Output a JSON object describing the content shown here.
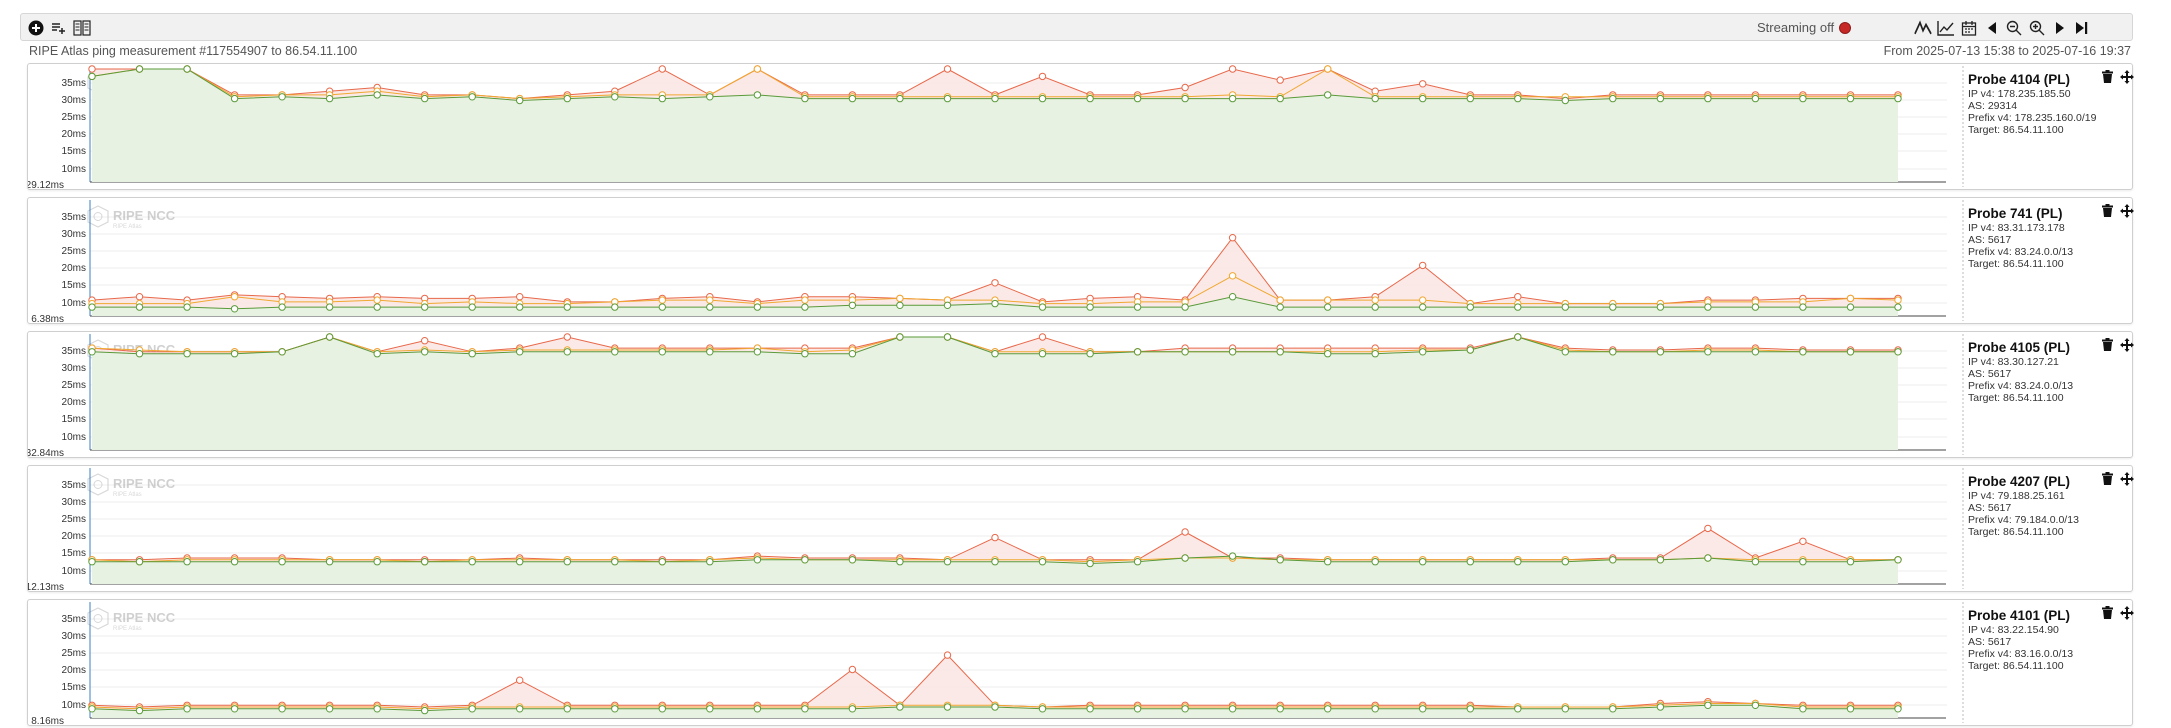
{
  "toolbar": {
    "left_icons": [
      "add-circle-icon",
      "add-list-icon",
      "grid-layout-icon"
    ],
    "streaming_label": "Streaming off",
    "right_icons": [
      "chart-type-icon",
      "line-chart-icon",
      "calendar-icon",
      "arrow-left-icon",
      "zoom-out-icon",
      "zoom-in-icon",
      "arrow-right-icon",
      "skip-end-icon"
    ]
  },
  "header": {
    "measurement": "RIPE Atlas ping measurement #117554907 to 86.54.11.100",
    "date_range": "From 2025-07-13 15:38 to 2025-07-16 19:37"
  },
  "colors": {
    "max": "#e8684a",
    "avg": "#f0a830",
    "min": "#5a9a3a",
    "max_fill": "#fbe7e4",
    "min_fill": "#e6f3e1",
    "accent": "#3b82c4"
  },
  "watermark": {
    "title": "RIPE NCC",
    "sub": "RIPE Atlas"
  },
  "probes": [
    {
      "title": "Probe 4104 (PL)",
      "ip": "IP v4: 178.235.185.50",
      "as": "AS: 29314",
      "prefix": "Prefix v4: 178.235.160.0/19",
      "target": "Target: 86.54.11.100",
      "y_labels": [
        "35ms",
        "30ms",
        "25ms",
        "20ms",
        "15ms",
        "10ms"
      ],
      "y_min_label": "29.12ms",
      "chart_data": {
        "type": "line",
        "y_floor": 29.12,
        "ylim": [
          8,
          38
        ],
        "series": [
          {
            "key": "max",
            "values": [
              38,
              38,
              38,
              31,
              31,
              32,
              33,
              31,
              31,
              30,
              31,
              32,
              38,
              31,
              38,
              31,
              31,
              31,
              38,
              31,
              36,
              31,
              31,
              33,
              38,
              35,
              38,
              32,
              34,
              31,
              31,
              30,
              31,
              31,
              31,
              31,
              31,
              31,
              31
            ]
          },
          {
            "key": "avg",
            "values": [
              36,
              38,
              38,
              30.5,
              31,
              31,
              32,
              30.5,
              31,
              30,
              30.5,
              31,
              31,
              31,
              38,
              30.5,
              30.5,
              30.5,
              30.5,
              30.5,
              30.5,
              30.5,
              30.5,
              30.5,
              31,
              30.5,
              38,
              30.5,
              30.5,
              30.5,
              30.5,
              30.5,
              30.5,
              30.5,
              30.5,
              30.5,
              30.5,
              30.5,
              30.5
            ]
          },
          {
            "key": "min",
            "values": [
              36,
              38,
              38,
              30,
              30.5,
              30,
              31,
              30,
              30.5,
              29.5,
              30,
              30.5,
              30,
              30.5,
              31,
              30,
              30,
              30,
              30,
              30,
              30,
              30,
              30,
              30,
              30,
              30,
              31,
              30,
              30,
              30,
              30,
              29.5,
              30,
              30,
              30,
              30,
              30,
              30,
              30
            ]
          }
        ]
      }
    },
    {
      "title": "Probe 741 (PL)",
      "ip": "IP v4: 83.31.173.178",
      "as": "AS: 5617",
      "prefix": "Prefix v4: 83.24.0.0/13",
      "target": "Target: 86.54.11.100",
      "y_labels": [
        "35ms",
        "30ms",
        "25ms",
        "20ms",
        "15ms",
        "10ms"
      ],
      "y_min_label": "6.38ms",
      "chart_data": {
        "type": "line",
        "y_floor": 6.38,
        "ylim": [
          6,
          38
        ],
        "series": [
          {
            "key": "max",
            "values": [
              10,
              11,
              10,
              11.5,
              11,
              10.5,
              11,
              10.5,
              10.5,
              11,
              9.5,
              9.5,
              10.5,
              11,
              9.5,
              11,
              11,
              10.5,
              10,
              15,
              9.5,
              10.5,
              11,
              10,
              28,
              10,
              10,
              11,
              20,
              9,
              11,
              9,
              9,
              9,
              10,
              10,
              10.5,
              10.5,
              10.5
            ]
          },
          {
            "key": "avg",
            "values": [
              9,
              9,
              9,
              11,
              9.5,
              9.5,
              10,
              9,
              9.5,
              9,
              9,
              9.5,
              10,
              10,
              9,
              10,
              10,
              10.5,
              10,
              10,
              9,
              9,
              9.5,
              9.5,
              17,
              10,
              10,
              10,
              10,
              9,
              9,
              9,
              9,
              9,
              9.5,
              9.5,
              9.5,
              10.5,
              10
            ]
          },
          {
            "key": "min",
            "values": [
              8,
              8,
              8,
              7.5,
              8,
              8,
              8,
              8,
              8,
              8,
              8,
              8,
              8,
              8,
              8,
              8,
              8.5,
              8.5,
              8.5,
              9,
              8,
              8,
              8,
              8,
              11,
              8,
              8,
              8,
              8,
              8,
              8,
              8,
              8,
              8,
              8,
              8,
              8,
              8,
              8
            ]
          }
        ]
      }
    },
    {
      "title": "Probe 4105 (PL)",
      "ip": "IP v4: 83.30.127.21",
      "as": "AS: 5617",
      "prefix": "Prefix v4: 83.24.0.0/13",
      "target": "Target: 86.54.11.100",
      "y_labels": [
        "35ms",
        "30ms",
        "25ms",
        "20ms",
        "15ms",
        "10ms"
      ],
      "y_min_label": "32.84ms",
      "chart_data": {
        "type": "line",
        "y_floor": 32.84,
        "ylim": [
          8,
          38
        ],
        "series": [
          {
            "key": "max",
            "values": [
              35,
              34,
              34,
              34,
              34,
              38,
              34,
              37,
              34,
              35,
              38,
              35,
              35,
              35,
              35,
              35,
              35,
              38,
              38,
              34,
              38,
              34,
              34,
              35,
              35,
              35,
              35,
              35,
              35,
              35,
              38,
              35,
              34.5,
              34.5,
              35,
              35,
              34.5,
              34.5,
              34.5
            ]
          },
          {
            "key": "avg",
            "values": [
              35,
              34.5,
              34,
              34,
              34,
              38,
              34,
              34.5,
              34,
              34.5,
              34.5,
              34.5,
              34.5,
              34.5,
              35,
              34,
              34.5,
              38,
              38,
              34,
              34,
              34,
              34,
              34,
              34,
              34,
              34,
              34,
              34.5,
              34.5,
              38,
              34.5,
              34,
              34,
              34.5,
              34.5,
              34,
              34,
              34
            ]
          },
          {
            "key": "min",
            "values": [
              34,
              33.5,
              33.5,
              33.5,
              34,
              38,
              33.5,
              34,
              33.5,
              34,
              34,
              34,
              34,
              34,
              34,
              33.5,
              33.5,
              38,
              38,
              33.5,
              33.5,
              33.5,
              34,
              34,
              34,
              34,
              33.5,
              33.5,
              34,
              34.5,
              38,
              34,
              34,
              34,
              34,
              34,
              34,
              34,
              34
            ]
          }
        ]
      }
    },
    {
      "title": "Probe 4207 (PL)",
      "ip": "IP v4: 79.188.25.161",
      "as": "AS: 5617",
      "prefix": "Prefix v4: 79.184.0.0/13",
      "target": "Target: 86.54.11.100",
      "y_labels": [
        "35ms",
        "30ms",
        "25ms",
        "20ms",
        "15ms",
        "10ms"
      ],
      "y_min_label": "12.13ms",
      "chart_data": {
        "type": "line",
        "y_floor": 12.13,
        "ylim": [
          8,
          38
        ],
        "series": [
          {
            "key": "max",
            "values": [
              14,
              14,
              14.5,
              14.5,
              14.5,
              14,
              14,
              14,
              14,
              14.5,
              14,
              14,
              14,
              14,
              15,
              14.5,
              14.5,
              14.5,
              14,
              20,
              14,
              14,
              14,
              21.5,
              14.5,
              14.5,
              14,
              14,
              14,
              14,
              14,
              14,
              14.5,
              14.5,
              22.5,
              14.5,
              19,
              14,
              14
            ]
          },
          {
            "key": "avg",
            "values": [
              14,
              13.5,
              14,
              14,
              14,
              14,
              14,
              13.5,
              14,
              14,
              14,
              14,
              13.5,
              14,
              14.5,
              14,
              14,
              14,
              14,
              14,
              14,
              13.5,
              14,
              14.5,
              14.5,
              14,
              14,
              14,
              14,
              14,
              14,
              14,
              14,
              14,
              14.5,
              14,
              14,
              14,
              14
            ]
          },
          {
            "key": "min",
            "values": [
              13.5,
              13.5,
              13.5,
              13.5,
              13.5,
              13.5,
              13.5,
              13.5,
              13.5,
              13.5,
              13.5,
              13.5,
              13.5,
              13.5,
              14,
              14,
              14,
              13.5,
              13.5,
              13.5,
              13.5,
              13,
              13.5,
              14.5,
              15,
              14,
              13.5,
              13.5,
              13.5,
              13.5,
              13.5,
              13.5,
              14,
              14,
              14.5,
              13.5,
              13.5,
              13.5,
              14
            ]
          }
        ]
      }
    },
    {
      "title": "Probe 4101 (PL)",
      "ip": "IP v4: 83.22.154.90",
      "as": "AS: 5617",
      "prefix": "Prefix v4: 83.16.0.0/13",
      "target": "Target: 86.54.11.100",
      "y_labels": [
        "35ms",
        "30ms",
        "25ms",
        "20ms",
        "15ms",
        "10ms"
      ],
      "y_min_label": "8.16ms",
      "chart_data": {
        "type": "line",
        "y_floor": 8.16,
        "ylim": [
          7,
          38
        ],
        "series": [
          {
            "key": "max",
            "values": [
              10,
              9.5,
              10,
              10,
              10,
              10,
              10,
              9.5,
              10,
              17,
              10,
              10,
              10,
              10,
              10,
              10,
              20,
              10,
              24,
              10,
              9.5,
              10,
              10,
              10,
              10,
              10,
              10,
              10,
              10,
              10,
              9.5,
              9.5,
              9.5,
              10.5,
              11,
              10.5,
              10,
              10,
              10
            ]
          },
          {
            "key": "avg",
            "values": [
              9.5,
              9,
              9.5,
              9.5,
              9.5,
              9.5,
              9.5,
              9,
              9.5,
              9.5,
              9.5,
              9.5,
              9.5,
              9.5,
              9.5,
              9.5,
              9.5,
              10,
              10,
              10,
              9.5,
              9.5,
              9.5,
              9.5,
              9.5,
              9.5,
              9.5,
              9.5,
              9.5,
              9.5,
              9.5,
              9.5,
              9.5,
              10,
              10.5,
              10.5,
              9.5,
              9.5,
              9.5
            ]
          },
          {
            "key": "min",
            "values": [
              9,
              8.5,
              9,
              9,
              9,
              9,
              9,
              8.5,
              9,
              9,
              9,
              9,
              9,
              9,
              9,
              9,
              9,
              9.5,
              9.5,
              9.5,
              9,
              9,
              9,
              9,
              9,
              9,
              9,
              9,
              9,
              9,
              9,
              9,
              9,
              9.5,
              10,
              10,
              9,
              9,
              9
            ]
          }
        ]
      }
    }
  ]
}
